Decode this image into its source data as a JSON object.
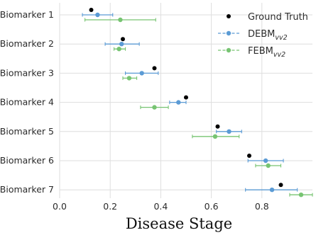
{
  "chart_data": {
    "type": "scatter",
    "title": "",
    "xlabel": "Disease Stage",
    "ylabel": "",
    "xlim": [
      0,
      1.0
    ],
    "x_ticks": [
      0.0,
      0.2,
      0.4,
      0.6,
      0.8
    ],
    "x_tick_labels": [
      "0.0",
      "0.2",
      "0.4",
      "0.6",
      "0.8"
    ],
    "categories": [
      "Biomarker 1",
      "Biomarker 2",
      "Biomarker 3",
      "Biomarker 4",
      "Biomarker 5",
      "Biomarker 6",
      "Biomarker 7"
    ],
    "grid": true,
    "legend_position": "top-right",
    "series": [
      {
        "name": "Ground Truth",
        "color": "#000000",
        "marker": "circle",
        "points": [
          {
            "category": "Biomarker 1",
            "x": 0.125
          },
          {
            "category": "Biomarker 2",
            "x": 0.25
          },
          {
            "category": "Biomarker 3",
            "x": 0.375
          },
          {
            "category": "Biomarker 4",
            "x": 0.5
          },
          {
            "category": "Biomarker 5",
            "x": 0.625
          },
          {
            "category": "Biomarker 6",
            "x": 0.75
          },
          {
            "category": "Biomarker 7",
            "x": 0.875
          }
        ]
      },
      {
        "name": "DEBM",
        "name_subscript": "vv2",
        "color": "#5b9bd5",
        "marker": "circle",
        "line_style": "dashed",
        "points": [
          {
            "category": "Biomarker 1",
            "x": 0.15,
            "x_min": 0.09,
            "x_max": 0.21
          },
          {
            "category": "Biomarker 2",
            "x": 0.245,
            "x_min": 0.18,
            "x_max": 0.315
          },
          {
            "category": "Biomarker 3",
            "x": 0.325,
            "x_min": 0.26,
            "x_max": 0.39
          },
          {
            "category": "Biomarker 4",
            "x": 0.47,
            "x_min": 0.435,
            "x_max": 0.5
          },
          {
            "category": "Biomarker 5",
            "x": 0.67,
            "x_min": 0.62,
            "x_max": 0.72
          },
          {
            "category": "Biomarker 6",
            "x": 0.815,
            "x_min": 0.745,
            "x_max": 0.885
          },
          {
            "category": "Biomarker 7",
            "x": 0.84,
            "x_min": 0.735,
            "x_max": 0.94
          }
        ]
      },
      {
        "name": "FEBM",
        "name_subscript": "vv2",
        "color": "#77c472",
        "marker": "circle",
        "line_style": "dashed",
        "points": [
          {
            "category": "Biomarker 1",
            "x": 0.24,
            "x_min": 0.1,
            "x_max": 0.38
          },
          {
            "category": "Biomarker 2",
            "x": 0.235,
            "x_min": 0.215,
            "x_max": 0.26
          },
          {
            "category": "Biomarker 3",
            "x": 0.275,
            "x_min": 0.25,
            "x_max": 0.305
          },
          {
            "category": "Biomarker 4",
            "x": 0.375,
            "x_min": 0.32,
            "x_max": 0.43
          },
          {
            "category": "Biomarker 5",
            "x": 0.615,
            "x_min": 0.525,
            "x_max": 0.71
          },
          {
            "category": "Biomarker 6",
            "x": 0.825,
            "x_min": 0.775,
            "x_max": 0.875
          },
          {
            "category": "Biomarker 7",
            "x": 0.955,
            "x_min": 0.91,
            "x_max": 1.0
          }
        ]
      }
    ]
  }
}
